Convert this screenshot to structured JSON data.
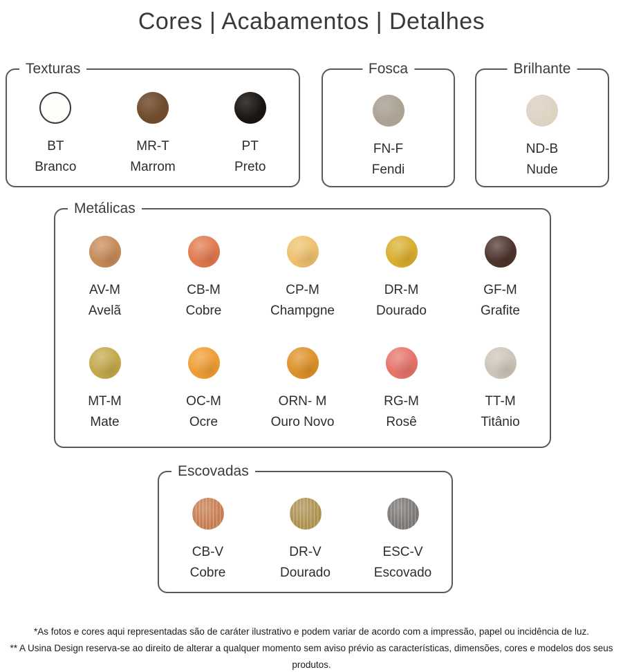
{
  "title": "Cores | Acabamentos | Detalhes",
  "groups": {
    "texturas": {
      "label": "Texturas",
      "swatches": [
        {
          "code": "BT",
          "name": "Branco",
          "color": "#fdfdfa"
        },
        {
          "code": "MR-T",
          "name": "Marrom",
          "color": "#6f4a2c"
        },
        {
          "code": "PT",
          "name": "Preto",
          "color": "#191410"
        }
      ]
    },
    "fosca": {
      "label": "Fosca",
      "swatches": [
        {
          "code": "FN-F",
          "name": "Fendi",
          "color": "#aba294"
        }
      ]
    },
    "brilhante": {
      "label": "Brilhante",
      "swatches": [
        {
          "code": "ND-B",
          "name": "Nude",
          "color": "#ded3c3"
        }
      ]
    },
    "metalicas": {
      "label": "Metálicas",
      "swatches": [
        {
          "code": "AV-M",
          "name": "Avelã",
          "color": "#c68a58"
        },
        {
          "code": "CB-M",
          "name": "Cobre",
          "color": "#e0794e"
        },
        {
          "code": "CP-M",
          "name": "Champgne",
          "color": "#eec06d"
        },
        {
          "code": "DR-M",
          "name": "Dourado",
          "color": "#d9ae2e"
        },
        {
          "code": "GF-M",
          "name": "Grafite",
          "color": "#4d342c"
        },
        {
          "code": "MT-M",
          "name": "Mate",
          "color": "#c3a84b"
        },
        {
          "code": "OC-M",
          "name": "Ocre",
          "color": "#ef9d33"
        },
        {
          "code": "ORN- M",
          "name": "Ouro Novo",
          "color": "#dd9128"
        },
        {
          "code": "RG-M",
          "name": "Rosê",
          "color": "#e6746a"
        },
        {
          "code": "TT-M",
          "name": "Titânio",
          "color": "#cdc5b9"
        }
      ]
    },
    "escovadas": {
      "label": "Escovadas",
      "swatches": [
        {
          "code": "CB-V",
          "name": "Cobre",
          "color": "#c97e52"
        },
        {
          "code": "DR-V",
          "name": "Dourado",
          "color": "#ae9350"
        },
        {
          "code": "ESC-V",
          "name": "Escovado",
          "color": "#7b7876"
        }
      ]
    }
  },
  "footnotes": [
    "*As fotos e cores aqui representadas são de caráter ilustrativo e podem variar de acordo com a impressão, papel ou incidência de luz.",
    "** A Usina Design reserva-se ao direito de alterar a qualquer momento sem aviso prévio as características, dimensões, cores e modelos dos seus produtos."
  ]
}
